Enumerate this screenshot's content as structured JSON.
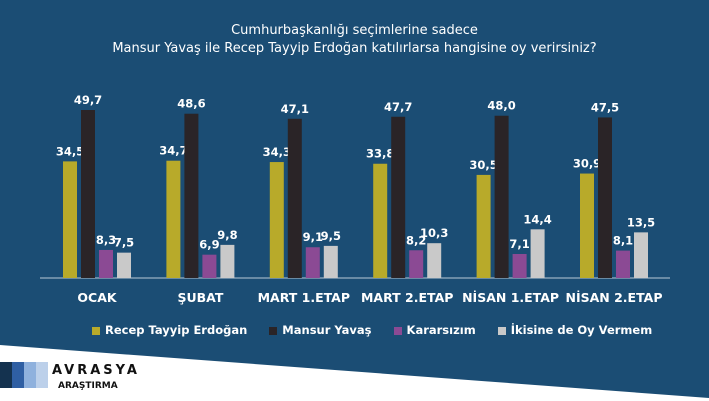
{
  "chart_data": {
    "type": "bar",
    "title": [
      "Cumhurbaşkanlığı seçimlerine sadece",
      "Mansur Yavaş ile Recep Tayyip Erdoğan katılırlarsa hangisine oy verirsiniz?"
    ],
    "categories": [
      "OCAK",
      "ŞUBAT",
      "MART 1.ETAP",
      "MART 2.ETAP",
      "NİSAN 1.ETAP",
      "NİSAN 2.ETAP"
    ],
    "series": [
      {
        "name": "Recep Tayyip Erdoğan",
        "color": "#b8aa2a",
        "values": [
          "34,5",
          "34,7",
          "34,3",
          "33,8",
          "30,5",
          "30,9"
        ]
      },
      {
        "name": "Mansur Yavaş",
        "color": "#2a2427",
        "values": [
          "49,7",
          "48,6",
          "47,1",
          "47,7",
          "48,0",
          "47,5"
        ]
      },
      {
        "name": "Kararsızım",
        "color": "#8b4a94",
        "values": [
          "8,3",
          "6,9",
          "9,1",
          "8,2",
          "7,1",
          "8,1"
        ]
      },
      {
        "name": "İkisine de Oy Vermem",
        "color": "#c9c9c9",
        "values": [
          "7,5",
          "9,8",
          "9,5",
          "10,3",
          "14,4",
          "13,5"
        ]
      }
    ],
    "ylim": [
      0,
      50
    ],
    "legend": "bottom"
  },
  "brand": {
    "name": "AVRASYA",
    "sub": "ARAŞTIRMA"
  }
}
